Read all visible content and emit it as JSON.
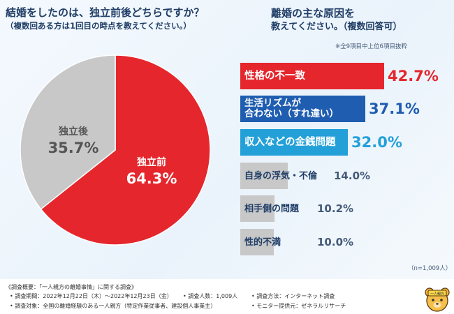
{
  "left_question": {
    "title": "結婚をしたのは、独立前後どちらですか？",
    "subtitle": "（複数回ある方は1回目の時点を教えてください。）"
  },
  "right_question": {
    "title_line1": "離婚の主な原因を",
    "title_line2": "教えてください。（複数回答可）",
    "note": "※全9項目中上位6項目抜粋"
  },
  "sample_note": "（n=1,009人）",
  "colors": {
    "red": "#e5262d",
    "blue_dark": "#1f5db0",
    "blue_light": "#23a0d8",
    "gray": "#c8c8c8",
    "navy": "#1f3d66"
  },
  "chart_data": [
    {
      "type": "pie",
      "title": "結婚をしたのは、独立前後どちらですか？",
      "slices": [
        {
          "label": "独立前",
          "value": 64.3,
          "display": "64.3%",
          "color": "#e5262d"
        },
        {
          "label": "独立後",
          "value": 35.7,
          "display": "35.7%",
          "color": "#c8c8c8"
        }
      ]
    },
    {
      "type": "bar",
      "orientation": "horizontal",
      "title": "離婚の主な原因を教えてください。（複数回答可）",
      "unit": "%",
      "categories": [
        "性格の不一致",
        "生活リズムが合わない（すれ違い）",
        "収入などの金銭問題",
        "自身の浮気・不倫",
        "相手側の問題",
        "性的不満"
      ],
      "label_lines": [
        [
          "性格の不一致"
        ],
        [
          "生活リズムが",
          "合わない（すれ違い）"
        ],
        [
          "収入などの金銭問題"
        ],
        [
          "自身の浮気・不倫"
        ],
        [
          "相手側の問題"
        ],
        [
          "性的不満"
        ]
      ],
      "values": [
        42.7,
        37.1,
        32.0,
        14.0,
        10.2,
        10.0
      ],
      "display": [
        "42.7%",
        "37.1%",
        "32.0%",
        "14.0%",
        "10.2%",
        "10.0%"
      ],
      "colors": [
        "#e5262d",
        "#1f5db0",
        "#23a0d8",
        "#c8c8c8",
        "#c8c8c8",
        "#c8c8c8"
      ]
    }
  ],
  "footer": {
    "title": "《調査概要：「一人親方の離婚事情」に関する調査》",
    "period": "• 調査期間：2022年12月22日（木）〜2022年12月23日（金）",
    "count": "• 調査人数：1,009人",
    "method": "• 調査方法：インターネット調査",
    "target": "• 調査対象：全国の離婚経験のある一人親方（特定作業従事者、建設個人事業主）",
    "monitor": "• モニター提供元：ゼネラルリサーチ"
  },
  "mascot_icon": "bear-mascot-icon",
  "mascot_badge": "一人親方"
}
